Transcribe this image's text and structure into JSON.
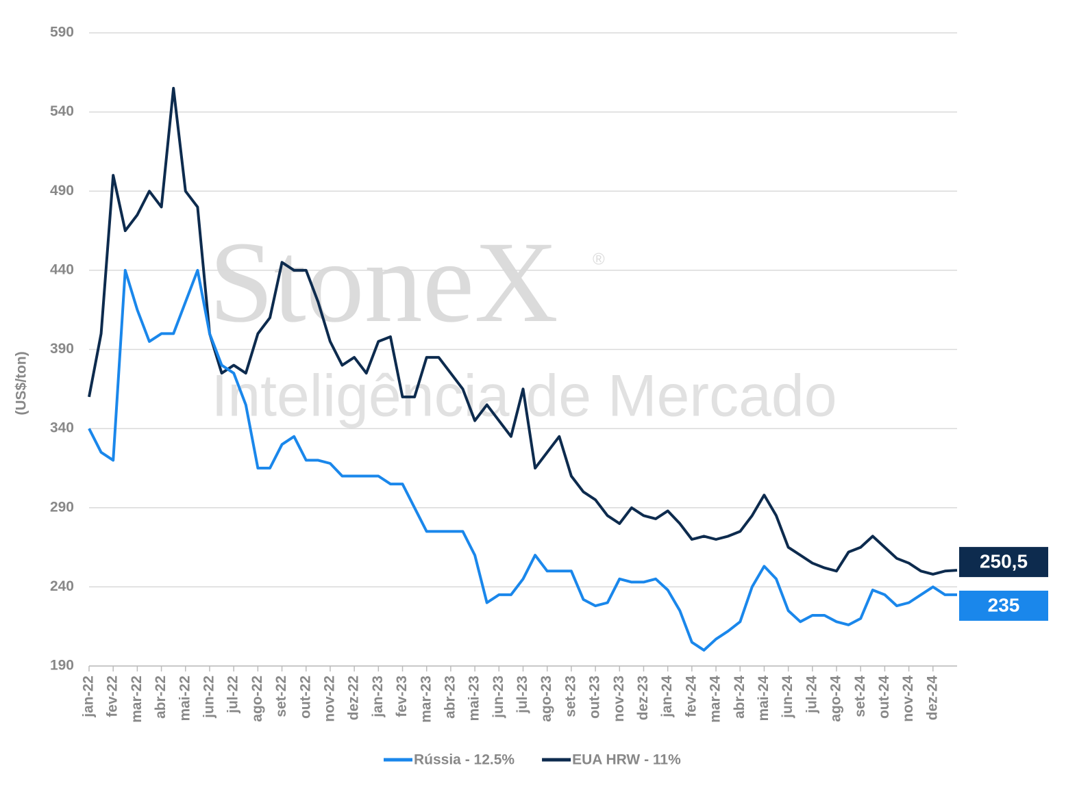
{
  "chart_data": {
    "type": "line",
    "watermark": {
      "brand": "StoneX",
      "mark": "®",
      "subtitle": "Inteligência de Mercado"
    },
    "y_label": "(US$/ton)",
    "ylim": [
      190,
      590
    ],
    "yticks": [
      190,
      240,
      290,
      340,
      390,
      440,
      490,
      540,
      590
    ],
    "grid": true,
    "legend": "bottom",
    "categories": [
      "jan-22",
      null,
      "fev-22",
      null,
      "mar-22",
      null,
      "abr-22",
      null,
      "mai-22",
      null,
      "jun-22",
      null,
      "jul-22",
      null,
      "ago-22",
      null,
      "set-22",
      null,
      "out-22",
      null,
      "nov-22",
      null,
      "dez-22",
      null,
      "jan-23",
      null,
      "fev-23",
      null,
      "mar-23",
      null,
      "abr-23",
      null,
      "mai-23",
      null,
      "jun-23",
      null,
      "jul-23",
      null,
      "ago-23",
      null,
      "set-23",
      null,
      "out-23",
      null,
      "nov-23",
      null,
      "dez-23",
      null,
      "jan-24",
      null,
      "fev-24",
      null,
      "mar-24",
      null,
      "abr-24",
      null,
      "mai-24",
      null,
      "jun-24",
      null,
      "jul-24",
      null,
      "ago-24",
      null,
      "set-24",
      null,
      "out-24",
      null,
      "nov-24",
      null,
      "dez-24",
      null,
      null
    ],
    "series": [
      {
        "name": "Rússia - 12.5%",
        "color": "#1a87eb",
        "values": [
          340,
          325,
          320,
          440,
          415,
          395,
          400,
          400,
          420,
          440,
          400,
          380,
          375,
          355,
          315,
          315,
          330,
          335,
          320,
          320,
          318,
          310,
          310,
          310,
          310,
          305,
          305,
          290,
          275,
          275,
          275,
          275,
          260,
          230,
          235,
          235,
          245,
          260,
          250,
          250,
          250,
          232,
          228,
          230,
          245,
          243,
          243,
          245,
          238,
          225,
          205,
          200,
          207,
          212,
          218,
          240,
          253,
          245,
          225,
          218,
          222,
          222,
          218,
          216,
          220,
          238,
          235,
          228,
          230,
          235,
          240,
          235,
          235
        ],
        "value_labels": [
          null,
          null,
          null,
          null,
          null,
          null,
          null,
          null,
          null,
          null,
          null,
          null,
          null,
          null,
          null,
          null,
          null,
          null,
          null,
          null,
          null,
          null,
          null,
          null,
          null,
          null,
          null,
          null,
          null,
          null,
          null,
          null,
          null,
          null,
          null,
          null,
          null,
          null,
          null,
          null,
          null,
          null,
          null,
          null,
          null,
          null,
          null,
          null,
          null,
          null,
          null,
          null,
          null,
          null,
          null,
          null,
          null,
          null,
          null,
          null,
          null,
          null,
          null,
          null,
          null,
          null,
          null,
          null,
          null,
          null,
          null,
          null,
          "235"
        ]
      },
      {
        "name": "EUA HRW - 11%",
        "color": "#0d2b4e",
        "values": [
          360,
          400,
          500,
          465,
          475,
          490,
          480,
          555,
          490,
          480,
          400,
          375,
          380,
          375,
          400,
          410,
          445,
          440,
          440,
          420,
          395,
          380,
          385,
          375,
          395,
          398,
          360,
          360,
          385,
          385,
          375,
          365,
          345,
          355,
          345,
          335,
          365,
          315,
          325,
          335,
          310,
          300,
          295,
          285,
          280,
          290,
          285,
          283,
          288,
          280,
          270,
          272,
          270,
          272,
          275,
          285,
          298,
          285,
          265,
          260,
          255,
          252,
          250,
          262,
          265,
          272,
          265,
          258,
          255,
          250,
          248,
          250,
          250.5
        ],
        "value_labels": [
          null,
          null,
          null,
          null,
          null,
          null,
          null,
          null,
          null,
          null,
          null,
          null,
          null,
          null,
          null,
          null,
          null,
          null,
          null,
          null,
          null,
          null,
          null,
          null,
          null,
          null,
          null,
          null,
          null,
          null,
          null,
          null,
          null,
          null,
          null,
          null,
          null,
          null,
          null,
          null,
          null,
          null,
          null,
          null,
          null,
          null,
          null,
          null,
          null,
          null,
          null,
          null,
          null,
          null,
          null,
          null,
          null,
          null,
          null,
          null,
          null,
          null,
          null,
          null,
          null,
          null,
          null,
          null,
          null,
          null,
          null,
          null,
          "250,5"
        ]
      }
    ]
  }
}
